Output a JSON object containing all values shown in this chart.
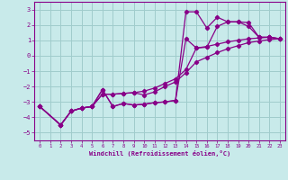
{
  "title": "",
  "xlabel": "Windchill (Refroidissement éolien,°C)",
  "bg_color": "#c8eaea",
  "line_color": "#880088",
  "grid_color": "#a0cccc",
  "xlim": [
    -0.5,
    23.5
  ],
  "ylim": [
    -5.5,
    3.5
  ],
  "xticks": [
    0,
    1,
    2,
    3,
    4,
    5,
    6,
    7,
    8,
    9,
    10,
    11,
    12,
    13,
    14,
    15,
    16,
    17,
    18,
    19,
    20,
    21,
    22,
    23
  ],
  "yticks": [
    -5,
    -4,
    -3,
    -2,
    -1,
    0,
    1,
    2,
    3
  ],
  "lines": [
    {
      "x": [
        0,
        2,
        3,
        4,
        5,
        6,
        7,
        8,
        9,
        10,
        11,
        12,
        13,
        14,
        15,
        16,
        17,
        18,
        19,
        20,
        21,
        22,
        23
      ],
      "y": [
        -3.3,
        -4.5,
        -3.6,
        -3.4,
        -3.3,
        -2.2,
        -3.3,
        -3.1,
        -3.2,
        -3.15,
        -3.05,
        -3.0,
        -2.9,
        1.1,
        0.5,
        0.55,
        1.9,
        2.2,
        2.2,
        2.15,
        1.2,
        1.2,
        1.1
      ]
    },
    {
      "x": [
        0,
        2,
        3,
        4,
        5,
        6,
        7,
        8,
        9,
        10,
        11,
        12,
        13,
        14,
        15,
        16,
        17,
        18,
        19,
        20,
        21,
        22,
        23
      ],
      "y": [
        -3.3,
        -4.5,
        -3.6,
        -3.4,
        -3.3,
        -2.2,
        -3.3,
        -3.1,
        -3.2,
        -3.15,
        -3.05,
        -3.0,
        -2.9,
        2.85,
        2.85,
        1.8,
        2.5,
        2.2,
        2.2,
        1.9,
        1.2,
        1.2,
        1.1
      ]
    },
    {
      "x": [
        0,
        2,
        3,
        4,
        5,
        6,
        7,
        8,
        9,
        10,
        11,
        12,
        13,
        14,
        15,
        16,
        17,
        18,
        19,
        20,
        21,
        22,
        23
      ],
      "y": [
        -3.3,
        -4.5,
        -3.6,
        -3.4,
        -3.3,
        -2.5,
        -2.5,
        -2.45,
        -2.4,
        -2.3,
        -2.1,
        -1.8,
        -1.5,
        -0.9,
        0.5,
        0.6,
        0.75,
        0.9,
        1.0,
        1.1,
        1.15,
        1.2,
        1.1
      ]
    },
    {
      "x": [
        0,
        2,
        3,
        4,
        5,
        6,
        7,
        8,
        9,
        10,
        11,
        12,
        13,
        14,
        15,
        16,
        17,
        18,
        19,
        20,
        21,
        22,
        23
      ],
      "y": [
        -3.3,
        -4.5,
        -3.6,
        -3.4,
        -3.3,
        -2.5,
        -2.5,
        -2.45,
        -2.4,
        -2.55,
        -2.35,
        -2.0,
        -1.7,
        -1.1,
        -0.4,
        -0.1,
        0.2,
        0.45,
        0.65,
        0.85,
        0.95,
        1.05,
        1.1
      ]
    }
  ]
}
